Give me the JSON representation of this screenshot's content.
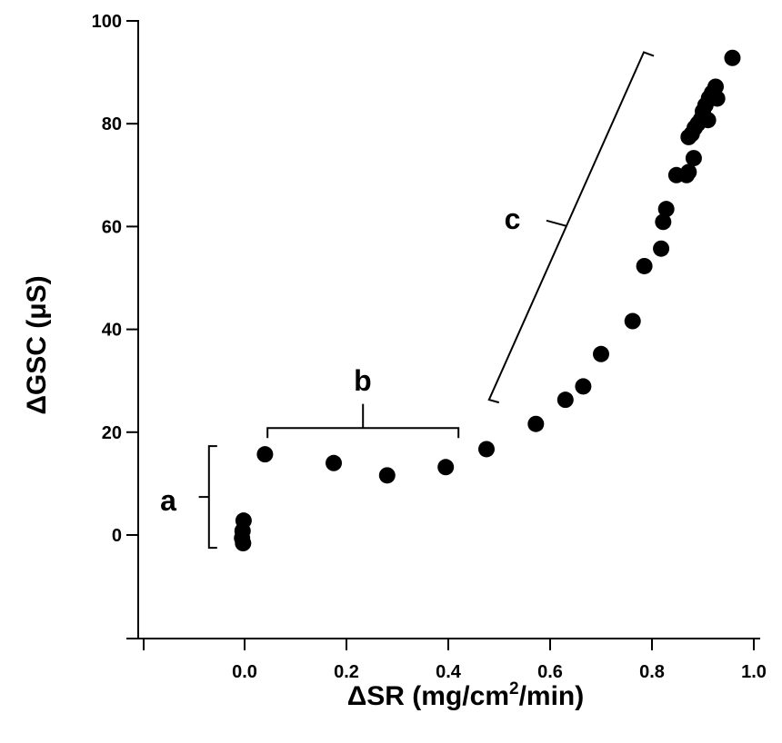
{
  "chart_data": {
    "type": "scatter",
    "title": "",
    "xlabel": "ΔSR (mg/cm",
    "xlabel_sup": "2",
    "xlabel_suffix": "/min)",
    "ylabel": "ΔGSC (μS)",
    "xlim": [
      -0.16,
      1.0
    ],
    "ylim": [
      -20,
      100
    ],
    "xticks": [
      0.0,
      0.2,
      0.4,
      0.6,
      0.8,
      1.0
    ],
    "xtick_labels": [
      "0.0",
      "0.2",
      "0.4",
      "0.6",
      "0.8",
      "1.0"
    ],
    "yticks": [
      0,
      20,
      40,
      60,
      80,
      100
    ],
    "ytick_labels": [
      "0",
      "20",
      "40",
      "60",
      "80",
      "100"
    ],
    "grid": false,
    "marker_color": "#000000",
    "points": [
      [
        -0.002,
        2.8
      ],
      [
        -0.004,
        0.8
      ],
      [
        -0.005,
        -0.6
      ],
      [
        -0.003,
        -1.6
      ],
      [
        0.04,
        15.7
      ],
      [
        0.175,
        14.0
      ],
      [
        0.28,
        11.6
      ],
      [
        0.395,
        13.2
      ],
      [
        0.475,
        16.7
      ],
      [
        0.572,
        21.6
      ],
      [
        0.63,
        26.3
      ],
      [
        0.665,
        28.9
      ],
      [
        0.7,
        35.2
      ],
      [
        0.762,
        41.6
      ],
      [
        0.785,
        52.3
      ],
      [
        0.818,
        55.7
      ],
      [
        0.822,
        60.9
      ],
      [
        0.828,
        63.4
      ],
      [
        0.848,
        70.0
      ],
      [
        0.868,
        70.0
      ],
      [
        0.872,
        70.6
      ],
      [
        0.882,
        73.3
      ],
      [
        0.872,
        77.4
      ],
      [
        0.878,
        78.0
      ],
      [
        0.884,
        79.2
      ],
      [
        0.89,
        80.0
      ],
      [
        0.896,
        80.8
      ],
      [
        0.91,
        80.7
      ],
      [
        0.9,
        82.4
      ],
      [
        0.905,
        83.6
      ],
      [
        0.912,
        85.0
      ],
      [
        0.918,
        86.0
      ],
      [
        0.925,
        87.2
      ],
      [
        0.928,
        84.9
      ],
      [
        0.958,
        92.8
      ]
    ],
    "annotations": [
      {
        "label": "a",
        "bracket": "vertical",
        "from": [
          -0.07,
          -2.5
        ],
        "to": [
          -0.07,
          17.3
        ],
        "stem_to": -0.09,
        "text_at": [
          -0.15,
          6.7
        ]
      },
      {
        "label": "b",
        "bracket": "horizontal",
        "from": [
          0.045,
          20.8
        ],
        "to": [
          0.42,
          20.8
        ],
        "stem_to": 25.5,
        "text_at": [
          0.232,
          30
        ]
      },
      {
        "label": "c",
        "bracket": "diagonal",
        "from": [
          0.48,
          26.3
        ],
        "to": [
          0.784,
          93.9
        ],
        "text_at": [
          0.526,
          61.5
        ]
      }
    ]
  }
}
